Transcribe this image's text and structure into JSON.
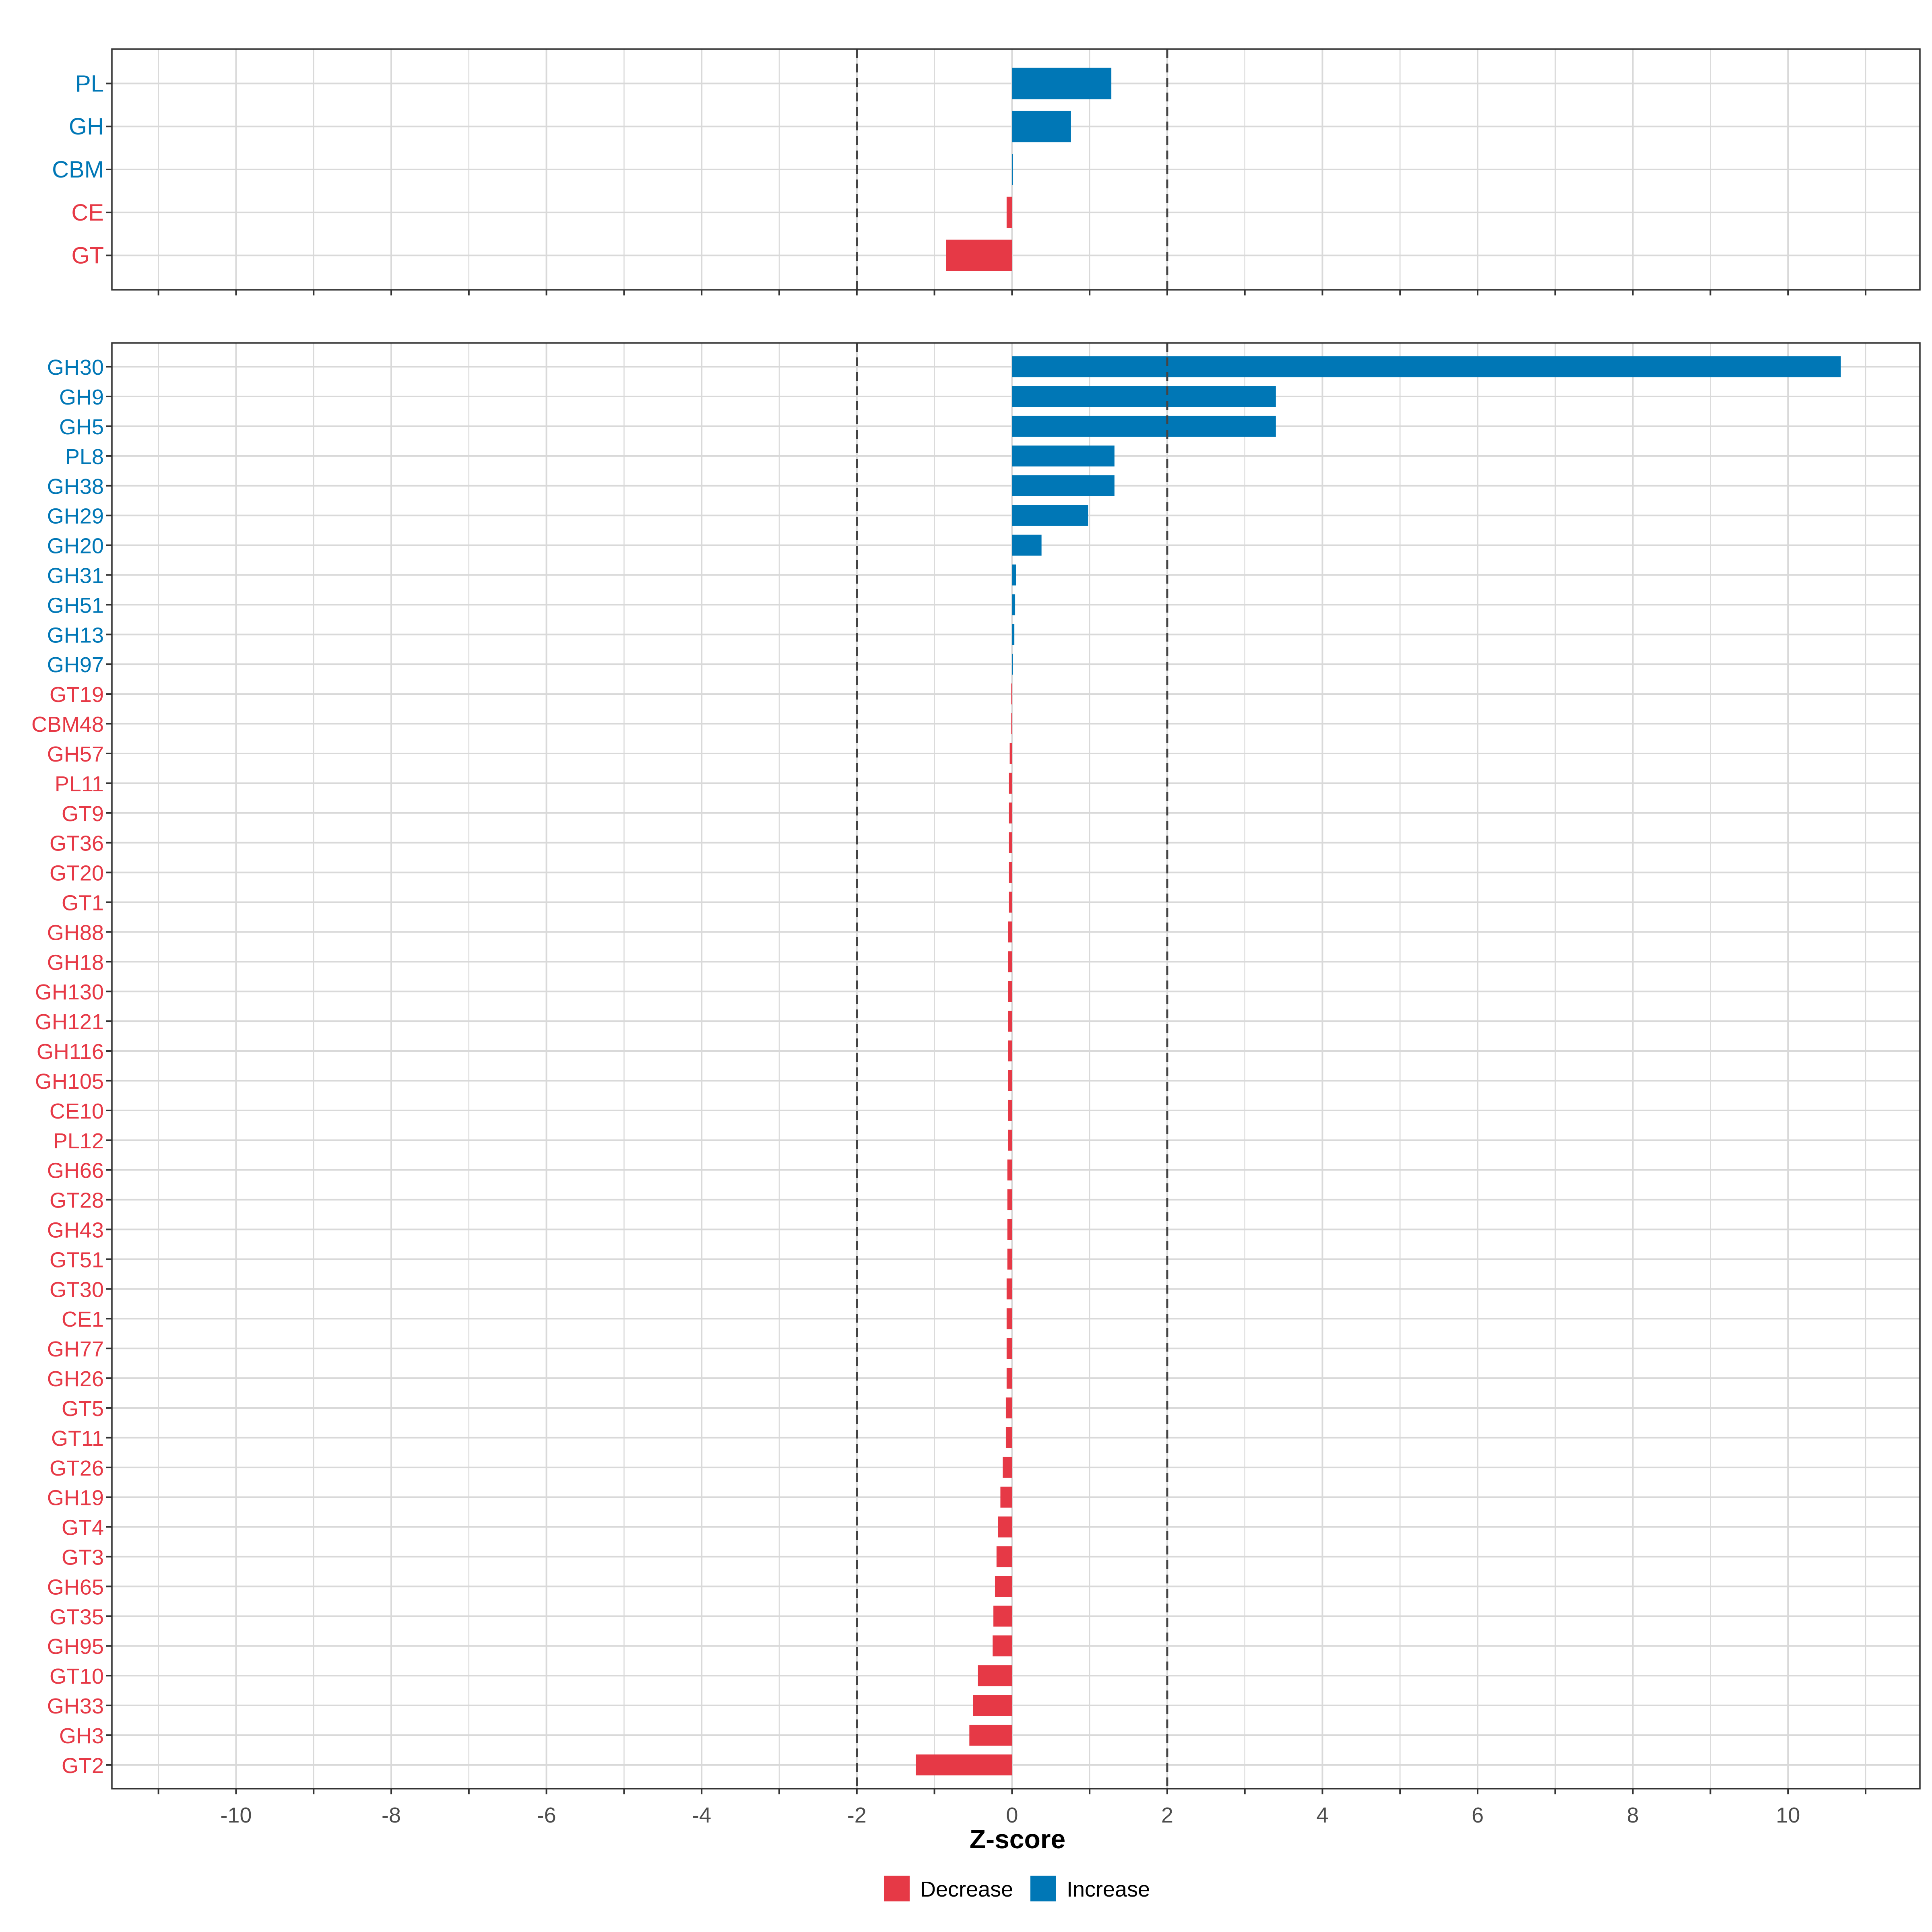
{
  "chart_data": [
    {
      "type": "bar",
      "orientation": "horizontal",
      "panel": "top",
      "categories": [
        "PL",
        "GH",
        "CBM",
        "CE",
        "GT"
      ],
      "values": [
        1.28,
        0.76,
        0.0,
        -0.07,
        -0.85
      ],
      "xlim": [
        -11.6,
        11.7
      ],
      "grid": true,
      "reference_lines": [
        -2,
        2
      ]
    },
    {
      "type": "bar",
      "orientation": "horizontal",
      "panel": "bottom",
      "categories": [
        "GH30",
        "GH9",
        "GH5",
        "PL8",
        "GH38",
        "GH29",
        "GH20",
        "GH31",
        "GH51",
        "GH13",
        "GH97",
        "GT19",
        "CBM48",
        "GH57",
        "PL11",
        "GT9",
        "GT36",
        "GT20",
        "GT1",
        "GH88",
        "GH18",
        "GH130",
        "GH121",
        "GH116",
        "GH105",
        "CE10",
        "PL12",
        "GH66",
        "GT28",
        "GH43",
        "GT51",
        "GT30",
        "CE1",
        "GH77",
        "GH26",
        "GT5",
        "GT11",
        "GT26",
        "GH19",
        "GT4",
        "GT3",
        "GH65",
        "GT35",
        "GH95",
        "GT10",
        "GH33",
        "GH3",
        "GT2"
      ],
      "values": [
        10.68,
        3.4,
        3.4,
        1.32,
        1.32,
        0.98,
        0.38,
        0.05,
        0.04,
        0.03,
        0.01,
        -0.01,
        -0.01,
        -0.03,
        -0.04,
        -0.04,
        -0.04,
        -0.04,
        -0.04,
        -0.05,
        -0.05,
        -0.05,
        -0.05,
        -0.05,
        -0.05,
        -0.05,
        -0.05,
        -0.06,
        -0.06,
        -0.06,
        -0.06,
        -0.07,
        -0.07,
        -0.07,
        -0.07,
        -0.08,
        -0.08,
        -0.12,
        -0.15,
        -0.18,
        -0.2,
        -0.22,
        -0.24,
        -0.25,
        -0.44,
        -0.5,
        -0.55,
        -1.24
      ],
      "xlim": [
        -11.6,
        11.7
      ],
      "grid": true,
      "reference_lines": [
        -2,
        2
      ],
      "xticks": [
        "-10",
        "-8",
        "-6",
        "-4",
        "-2",
        "0",
        "2",
        "4",
        "6",
        "8",
        "10"
      ],
      "xlabel": "Z-score"
    }
  ],
  "legend": {
    "placement": "bottom-center",
    "items": [
      {
        "label": "Decrease",
        "color": "#E63946"
      },
      {
        "label": "Increase",
        "color": "#0077B6"
      }
    ]
  },
  "colors": {
    "increase": "#0077B6",
    "decrease": "#E63946"
  }
}
